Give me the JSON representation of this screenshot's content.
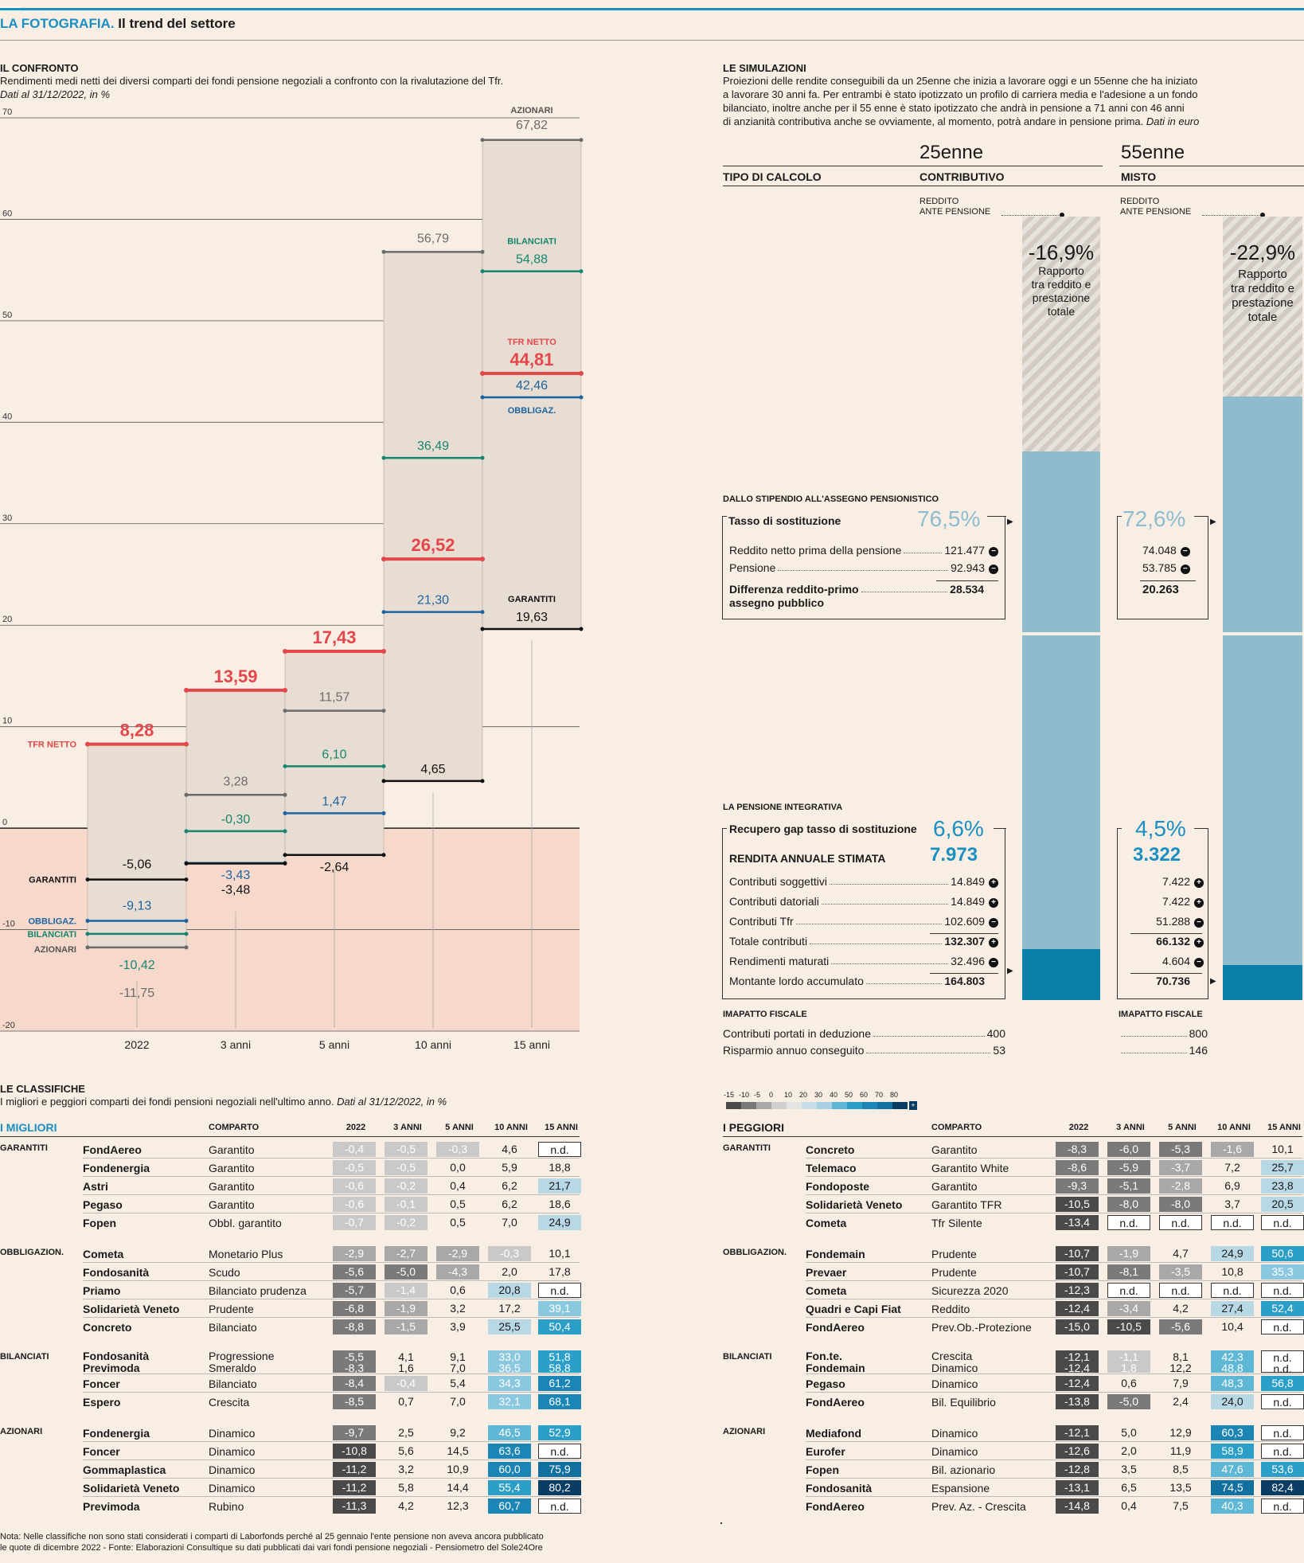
{
  "header": {
    "kicker": "LA FOTOGRAFIA.",
    "title": "Il trend del settore"
  },
  "confronto": {
    "title": "IL CONFRONTO",
    "subtitle": "Rendimenti medi netti dei diversi comparti dei fondi pensione negoziali a confronto con la rivalutazione del Tfr.",
    "date_note": "Dati al 31/12/2022, in %"
  },
  "chart_data": {
    "type": "line",
    "categories": [
      "2022",
      "3 anni",
      "5 anni",
      "10 anni",
      "15 anni"
    ],
    "ylim": [
      -20,
      70
    ],
    "yticks": [
      70,
      60,
      50,
      40,
      30,
      20,
      10,
      0,
      -10,
      -20
    ],
    "series": [
      {
        "name": "TFR NETTO",
        "color": "#e4474a",
        "values": [
          8.28,
          13.59,
          17.43,
          26.52,
          44.81
        ],
        "labels": [
          "8,28",
          "13,59",
          "17,43",
          "26,52",
          "44,81"
        ]
      },
      {
        "name": "AZIONARI",
        "color": "#6b6b6b",
        "values": [
          -11.75,
          3.28,
          11.57,
          56.79,
          67.82
        ],
        "labels": [
          "-11,75",
          "3,28",
          "11,57",
          "56,79",
          "67,82"
        ]
      },
      {
        "name": "BILANCIATI",
        "color": "#16866f",
        "values": [
          -10.42,
          -0.3,
          6.1,
          36.49,
          54.88
        ],
        "labels": [
          "-10,42",
          "-0,30",
          "6,10",
          "36,49",
          "54,88"
        ]
      },
      {
        "name": "OBBLIGAZ.",
        "color": "#1c64a1",
        "values": [
          -9.13,
          -3.43,
          1.47,
          21.3,
          42.46
        ],
        "labels": [
          "-9,13",
          "-3,43",
          "1,47",
          "21,30",
          "42,46"
        ]
      },
      {
        "name": "GARANTITI",
        "color": "#111111",
        "values": [
          -5.06,
          -3.48,
          -2.64,
          4.65,
          19.63
        ],
        "labels": [
          "-5,06",
          "-3,48",
          "-2,64",
          "4,65",
          "19,63"
        ]
      }
    ],
    "labels_left": [
      "TFR NETTO",
      "GARANTITI",
      "OBBLIGAZ.",
      "BILANCIATI",
      "AZIONARI"
    ],
    "labels_right": [
      "AZIONARI",
      "BILANCIATI",
      "TFR NETTO",
      "OBBLIGAZ.",
      "GARANTITI"
    ]
  },
  "simulazioni": {
    "title": "LE SIMULAZIONI",
    "text1": "Proiezioni delle rendite conseguibili da un 25enne che inizia a lavorare oggi e un 55enne che ha iniziato",
    "text2": "a lavorare 30 anni fa. Per entrambi è stato ipotizzato un profilo di carriera media e l'adesione a un fondo",
    "text3": "bilanciato, inoltre anche per il 55 enne è stato ipotizzato che andrà in pensione a 71 anni con 46 anni",
    "text4": "di anzianità contributiva anche se ovviamente, al momento, potrà andare in pensione prima.",
    "text4b": "Dati in euro",
    "col_a": "25enne",
    "col_b": "55enne",
    "tipo": "TIPO DI CALCOLO",
    "calc_a": "CONTRIBUTIVO",
    "calc_b": "MISTO",
    "reddito_l1": "REDDITO",
    "reddito_l2": "ANTE PENSIONE",
    "gap_a": "-16,9%",
    "gap_b": "-22,9%",
    "gap_text": [
      "Rapporto",
      "tra reddito e",
      "prestazione",
      "totale"
    ],
    "stipendio_title": "DALLO STIPENDIO ALL'ASSEGNO PENSIONISTICO",
    "tasso_label": "Tasso di sostituzione",
    "tasso_a": "76,5%",
    "tasso_b": "72,6%",
    "rows1": [
      {
        "label": "Reddito netto prima della pensione",
        "a": "121.477",
        "b": "74.048",
        "icon": "−"
      },
      {
        "label": "Pensione",
        "a": "92.943",
        "b": "53.785",
        "icon": "−"
      }
    ],
    "diff_l1": "Differenza reddito-primo",
    "diff_l2": "assegno pubblico",
    "diff_a": "28.534",
    "diff_b": "20.263",
    "integrativa_title": "LA PENSIONE INTEGRATIVA",
    "recupero_label": "Recupero gap tasso di sostituzione",
    "recupero_a": "6,6%",
    "recupero_b": "4,5%",
    "rendita_label": "RENDITA ANNUALE STIMATA",
    "rendita_a": "7.973",
    "rendita_b": "3.322",
    "rows2": [
      {
        "label": "Contributi soggettivi",
        "a": "14.849",
        "b": "7.422",
        "icon": "+",
        "bold": false
      },
      {
        "label": "Contributi datoriali",
        "a": "14.849",
        "b": "7.422",
        "icon": "+",
        "bold": false
      },
      {
        "label": "Contributi Tfr",
        "a": "102.609",
        "b": "51.288",
        "icon": "−",
        "bold": false
      },
      {
        "label": "Totale contributi",
        "a": "132.307",
        "b": "66.132",
        "icon": "+",
        "bold": true
      },
      {
        "label": "Rendimenti maturati",
        "a": "32.496",
        "b": "4.604",
        "icon": "−",
        "bold": false
      },
      {
        "label": "Montante lordo accumulato",
        "a": "164.803",
        "b": "70.736",
        "icon": "",
        "bold": true
      }
    ],
    "fiscale_title": "IMAPATTO FISCALE",
    "fiscale_rows": [
      {
        "label": "Contributi portati in deduzione",
        "a": "400",
        "b": "800"
      },
      {
        "label": "Risparmio annuo conseguito",
        "a": "53",
        "b": "146"
      }
    ],
    "bar_a": {
      "blue_top": 0.7,
      "dark": 0.065
    },
    "bar_b": {
      "blue_top": 0.77,
      "dark": 0.045
    }
  },
  "classifiche": {
    "title": "LE CLASSIFICHE",
    "subtitle": "I migliori e peggiori comparti dei fondi pensioni negoziali nell'ultimo anno.",
    "subtitle_date": "Dati al 31/12/2022, in %",
    "legend_ticks": [
      "-15",
      "-10",
      "-5",
      "0",
      "10",
      "20",
      "30",
      "40",
      "50",
      "60",
      "70",
      "80"
    ],
    "legend_colors": [
      "#4a4a4a",
      "#7a7a7a",
      "#a8a8a8",
      "#cfcfcf",
      "#e4e4e4",
      "#c9dde8",
      "#a8d0e2",
      "#5fb7d6",
      "#2b9fc7",
      "#1b86b5",
      "#1170a0",
      "#0a3d63"
    ],
    "legend_plus": "+",
    "headers": [
      "COMPARTO",
      "2022",
      "3 ANNI",
      "5 ANNI",
      "10 ANNI",
      "15 ANNI"
    ],
    "migliori_title": "I MIGLIORI",
    "peggiori_title": "I PEGGIORI",
    "migliori": [
      {
        "group": "GARANTITI",
        "rows": [
          [
            "FondAereo",
            "Garantito",
            "-0,4",
            "-0,5",
            "-0,3",
            "4,6",
            "n.d."
          ],
          [
            "Fondenergia",
            "Garantito",
            "-0,5",
            "-0,5",
            "0,0",
            "5,9",
            "18,8"
          ],
          [
            "Astri",
            "Garantito",
            "-0,6",
            "-0,2",
            "0,4",
            "6,2",
            "21,7"
          ],
          [
            "Pegaso",
            "Garantito",
            "-0,6",
            "-0,1",
            "0,5",
            "6,2",
            "18,6"
          ],
          [
            "Fopen",
            "Obbl. garantito",
            "-0,7",
            "-0,2",
            "0,5",
            "7,0",
            "24,9"
          ]
        ]
      },
      {
        "group": "OBBLIGAZION.",
        "rows": [
          [
            "Cometa",
            "Monetario Plus",
            "-2,9",
            "-2,7",
            "-2,9",
            "-0,3",
            "10,1"
          ],
          [
            "Fondosanità",
            "Scudo",
            "-5,6",
            "-5,0",
            "-4,3",
            "2,0",
            "17,8"
          ],
          [
            "Priamo",
            "Bilanciato prudenza",
            "-5,7",
            "-1,4",
            "0,6",
            "20,8",
            "n.d."
          ],
          [
            "Solidarietà Veneto",
            "Prudente",
            "-6,8",
            "-1,9",
            "3,2",
            "17,2",
            "39,1"
          ],
          [
            "Concreto",
            "Bilanciato",
            "-8,8",
            "-1,5",
            "3,9",
            "25,5",
            "50,4"
          ]
        ]
      },
      {
        "group": "BILANCIATI",
        "rows": [
          [
            "Fondosanità|Previmoda",
            "Progressione|Smeraldo",
            "-5,5|-8,3",
            "4,1|1,6",
            "9,1|7,0",
            "33,0|36,5",
            "51,8|58,8"
          ],
          [
            "Foncer",
            "Bilanciato",
            "-8,4",
            "-0,4",
            "5,4",
            "34,3",
            "61,2"
          ],
          [
            "Espero",
            "Crescita",
            "-8,5",
            "0,7",
            "7,0",
            "32,1",
            "68,1"
          ]
        ]
      },
      {
        "group": "AZIONARI",
        "rows": [
          [
            "Fondenergia",
            "Dinamico",
            "-9,7",
            "2,5",
            "9,2",
            "46,5",
            "52,9"
          ],
          [
            "Foncer",
            "Dinamico",
            "-10,8",
            "5,6",
            "14,5",
            "63,6",
            "n.d."
          ],
          [
            "Gommaplastica",
            "Dinamico",
            "-11,2",
            "3,2",
            "10,9",
            "60,0",
            "75,9"
          ],
          [
            "Solidarietà Veneto",
            "Dinamico",
            "-11,2",
            "5,8",
            "14,4",
            "55,4",
            "80,2"
          ],
          [
            "Previmoda",
            "Rubino",
            "-11,3",
            "4,2",
            "12,3",
            "60,7",
            "n.d."
          ]
        ]
      }
    ],
    "peggiori": [
      {
        "group": "GARANTITI",
        "rows": [
          [
            "Concreto",
            "Garantito",
            "-8,3",
            "-6,0",
            "-5,3",
            "-1,6",
            "10,1"
          ],
          [
            "Telemaco",
            "Garantito White",
            "-8,6",
            "-5,9",
            "-3,7",
            "7,2",
            "25,7"
          ],
          [
            "Fondoposte",
            "Garantito",
            "-9,3",
            "-5,1",
            "-2,8",
            "6,9",
            "23,8"
          ],
          [
            "Solidarietà Veneto",
            "Garantito TFR",
            "-10,5",
            "-8,0",
            "-8,0",
            "3,7",
            "20,5"
          ],
          [
            "Cometa",
            "Tfr Silente",
            "-13,4",
            "n.d.",
            "n.d.",
            "n.d.",
            "n.d."
          ]
        ]
      },
      {
        "group": "OBBLIGAZION.",
        "rows": [
          [
            "Fondemain",
            "Prudente",
            "-10,7",
            "-1,9",
            "4,7",
            "24,9",
            "50,6"
          ],
          [
            "Prevaer",
            "Prudente",
            "-10,7",
            "-8,1",
            "-3,5",
            "10,8",
            "35,3"
          ],
          [
            "Cometa",
            "Sicurezza 2020",
            "-12,3",
            "n.d.",
            "n.d.",
            "n.d.",
            "n.d."
          ],
          [
            "Quadri e Capi Fiat",
            "Reddito",
            "-12,4",
            "-3,4",
            "4,2",
            "27,4",
            "52,4"
          ],
          [
            "FondAereo",
            "Prev.Ob.-Protezione",
            "-15,0",
            "-10,5",
            "-5,6",
            "10,4",
            "n.d."
          ]
        ]
      },
      {
        "group": "BILANCIATI",
        "rows": [
          [
            "Fon.te.|Fondemain",
            "Crescita|Dinamico",
            "-12,1|-12,4",
            "-1,1|1,8",
            "8,1|12,2",
            "42,3|48,8",
            "n.d.|n.d."
          ],
          [
            "Pegaso",
            "Dinamico",
            "-12,4",
            "0,6",
            "7,9",
            "48,3",
            "56,8"
          ],
          [
            "FondAereo",
            "Bil. Equilibrio",
            "-13,8",
            "-5,0",
            "2,4",
            "24,0",
            "n.d."
          ]
        ]
      },
      {
        "group": "AZIONARI",
        "rows": [
          [
            "Mediafond",
            "Dinamico",
            "-12,1",
            "5,0",
            "12,9",
            "60,3",
            "n.d."
          ],
          [
            "Eurofer",
            "Dinamico",
            "-12,6",
            "2,0",
            "11,9",
            "58,9",
            "n.d."
          ],
          [
            "Fopen",
            "Bil. azionario",
            "-12,8",
            "3,5",
            "8,5",
            "47,6",
            "53,6"
          ],
          [
            "Fondosanità",
            "Espansione",
            "-13,1",
            "6,5",
            "13,5",
            "74,5",
            "82,4"
          ],
          [
            "FondAereo",
            "Prev. Az. - Crescita",
            "-14,8",
            "0,4",
            "7,5",
            "40,3",
            "n.d."
          ]
        ]
      }
    ]
  },
  "footer": {
    "line1": "Nota: Nelle classifiche non sono stati considerati i comparti di Laborfonds perché al 25 gennaio l'ente pensione non aveva ancora pubblicato",
    "line2": "le quote di dicembre 2022 - Fonte: Elaborazioni Consultique su dati pubblicati dai vari fondi pensione negoziali - Pensiometro del Sole24Ore"
  }
}
